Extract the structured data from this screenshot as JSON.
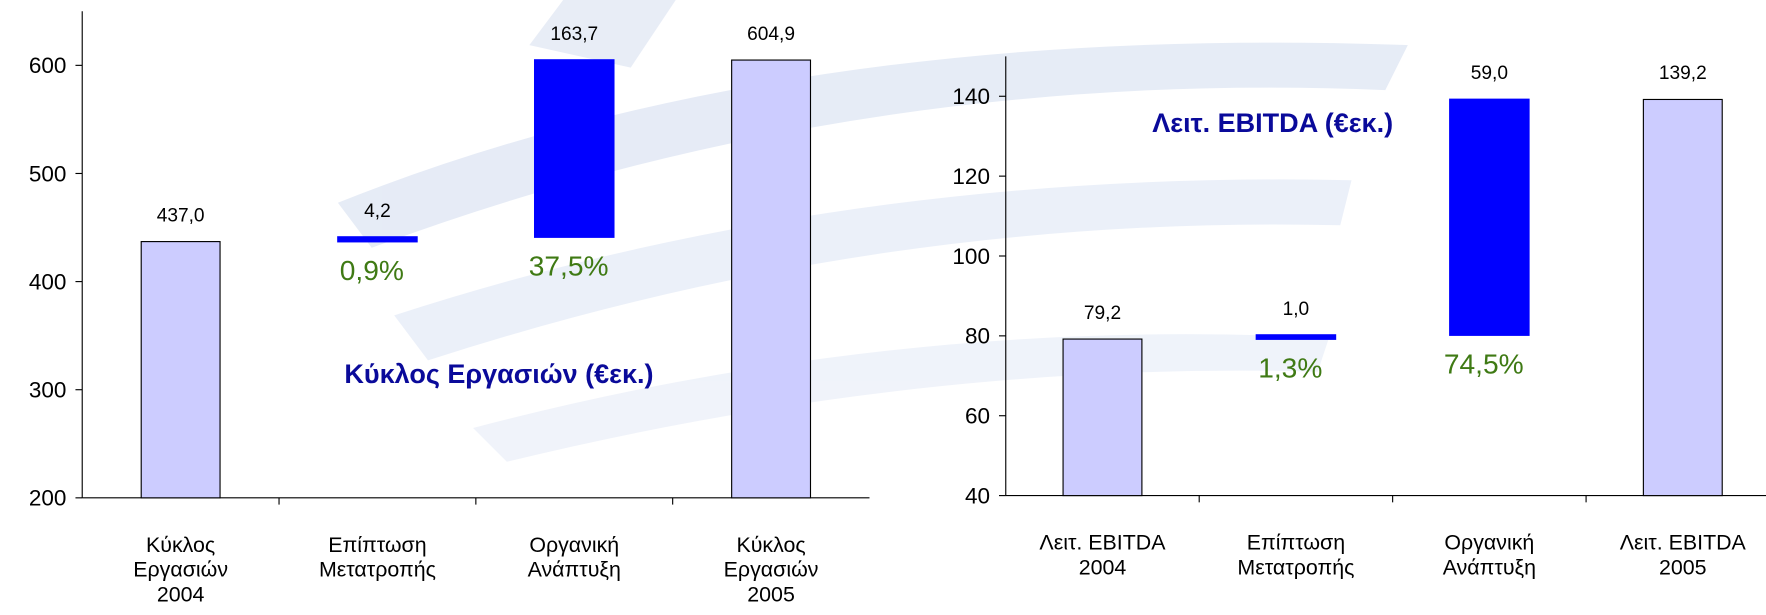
{
  "chart_data": [
    {
      "type": "waterfall",
      "title": "Κύκλος Εργασιών (€εκ.)",
      "categories": [
        "Κύκλος\nΕργασιών\n2004",
        "Επίπτωση\nΜετατροπής",
        "Οργανική\nΑνάπτυξη",
        "Κύκλος\nΕργασιών\n2005"
      ],
      "values": [
        437.0,
        4.2,
        163.7,
        604.9
      ],
      "value_labels": [
        "437,0",
        "4,2",
        "163,7",
        "604,9"
      ],
      "growth_labels": [
        null,
        "0,9%",
        "37,5%",
        null
      ],
      "kind": [
        "total",
        "delta",
        "delta",
        "total"
      ],
      "total_color": "#ccccff",
      "delta_color": "#0000ff",
      "ylim": [
        200,
        650
      ],
      "yticks": [
        200,
        300,
        400,
        500,
        600
      ]
    },
    {
      "type": "waterfall",
      "title": "Λειτ. EBITDA (€εκ.)",
      "categories": [
        "Λειτ. EBITDA\n2004",
        "Επίπτωση\nΜετατροπής",
        "Οργανική\nΑνάπτυξη",
        "Λειτ. EBITDA\n2005"
      ],
      "values": [
        79.2,
        1.0,
        59.0,
        139.2
      ],
      "value_labels": [
        "79,2",
        "1,0",
        "59,0",
        "139,2"
      ],
      "growth_labels": [
        null,
        "1,3%",
        "74,5%",
        null
      ],
      "kind": [
        "total",
        "delta",
        "delta",
        "total"
      ],
      "total_color": "#ccccff",
      "delta_color": "#0000ff",
      "ylim": [
        40,
        150
      ],
      "yticks": [
        40,
        60,
        80,
        100,
        120,
        140
      ]
    }
  ]
}
